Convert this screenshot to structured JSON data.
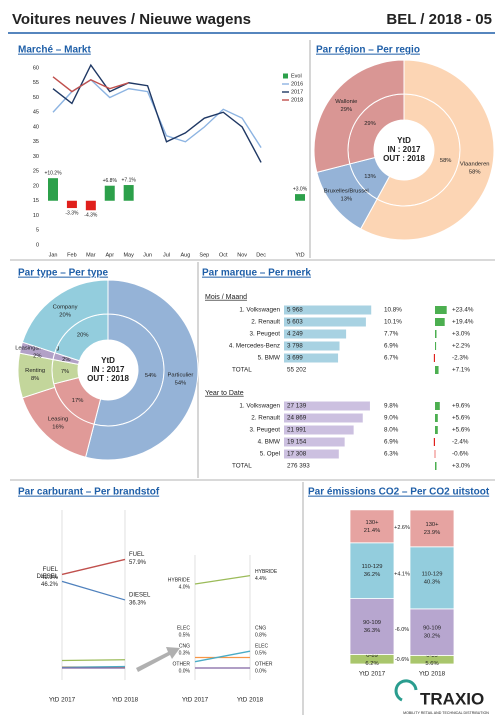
{
  "header": {
    "title": "Voitures neuves / Nieuwe wagens",
    "subtitle": "BEL / 2018 - 05"
  },
  "footer": {
    "logo": "TRAXIO",
    "tagline": "MOBILITY RETAIL AND TECHNICAL DISTRIBUTION"
  },
  "chart_data": [
    {
      "type": "line",
      "title": "Marché – Markt",
      "categories": [
        "Jan",
        "Feb",
        "Mar",
        "Apr",
        "May",
        "Jun",
        "Jul",
        "Aug",
        "Sep",
        "Oct",
        "Nov",
        "Dec",
        "YtD"
      ],
      "ylim": [
        0,
        60
      ],
      "yticks": [
        0,
        5,
        10,
        15,
        20,
        25,
        30,
        35,
        40,
        45,
        50,
        55,
        60
      ],
      "y2lim": [
        -20,
        60
      ],
      "legend": "upper right",
      "series": [
        {
          "name": "Evol",
          "type": "bar",
          "axis": "y2",
          "color": "#2ca04a",
          "negative_color": "#e0201c",
          "values": [
            10.2,
            -3.3,
            -4.3,
            6.8,
            7.1,
            null,
            null,
            null,
            null,
            null,
            null,
            null,
            3.0
          ],
          "value_labels": [
            "+10.2%",
            "-3.3%",
            "-4.3%",
            "+6.8%",
            "+7.1%",
            null,
            null,
            null,
            null,
            null,
            null,
            null,
            "+3.0%"
          ]
        },
        {
          "name": "2016",
          "type": "line",
          "color": "#8db4e2",
          "values": [
            45,
            52,
            56,
            50,
            53,
            52,
            37,
            35,
            40,
            46,
            43,
            33,
            null
          ]
        },
        {
          "name": "2017",
          "type": "line",
          "color": "#1f3864",
          "values": [
            53,
            48,
            61,
            52,
            55,
            54,
            35,
            38,
            43,
            45,
            40,
            28,
            null
          ]
        },
        {
          "name": "2018",
          "type": "line",
          "color": "#c0504d",
          "values": [
            57,
            52,
            56,
            53,
            55,
            null,
            null,
            null,
            null,
            null,
            null,
            null,
            null
          ]
        }
      ]
    },
    {
      "type": "donut",
      "title": "Par région – Per regio",
      "center_label": [
        "YtD",
        "IN : 2017",
        "OUT : 2018"
      ],
      "categories": [
        "Vlaanderen",
        "Bruxelles/Brussel",
        "Wallonie"
      ],
      "colors": [
        "#fcd5b4",
        "#95b3d7",
        "#d99694"
      ],
      "series": [
        {
          "values": [
            58,
            13,
            29
          ],
          "value_labels": [
            "58%",
            "13%",
            "29%"
          ]
        },
        {
          "values": [
            58,
            13,
            29
          ],
          "value_labels": [
            "58%",
            "13%",
            "29%"
          ]
        }
      ]
    },
    {
      "type": "donut",
      "title": "Par type – Per type",
      "center_label": [
        "YtD",
        "IN : 2017",
        "OUT : 2018"
      ],
      "categories": [
        "Particulier",
        "Leasing",
        "Renting",
        "Leasing&Renting",
        "Company"
      ],
      "colors": [
        "#95b3d7",
        "#e09a98",
        "#c3d69b",
        "#b2a1c7",
        "#93cddd"
      ],
      "series": [
        {
          "values": [
            54,
            17,
            7,
            2,
            20
          ],
          "value_labels": [
            "54%",
            "17%",
            "7%",
            "2%",
            "20%"
          ]
        },
        {
          "values": [
            54,
            16,
            8,
            2,
            20
          ],
          "value_labels": [
            "54%",
            "16%",
            "8%",
            "2%",
            "20%"
          ]
        }
      ]
    },
    {
      "type": "table_bar",
      "title": "Par marque – Per merk",
      "total_label": "TOTAL",
      "evol_xlim": [
        -10,
        30
      ],
      "tables": [
        {
          "title": "Mois / Maand",
          "color": "#a8d2e2",
          "xlim": [
            0,
            6500
          ],
          "categories": [
            "1. Volkswagen",
            "2. Renault",
            "3. Peugeot",
            "4. Mercedes-Benz",
            "5. BMW"
          ],
          "values": [
            5968,
            5603,
            4249,
            3798,
            3699
          ],
          "value_labels": [
            "5 968",
            "5 603",
            "4 249",
            "3 798",
            "3 699"
          ],
          "shares": [
            "10.8%",
            "10.1%",
            "7.7%",
            "6.9%",
            "6.7%"
          ],
          "evol": [
            23.4,
            19.4,
            3.0,
            2.2,
            -2.3
          ],
          "evol_labels": [
            "+23.4%",
            "+19.4%",
            "+3.0%",
            "+2.2%",
            "-2.3%"
          ],
          "total": "55 202",
          "total_evol": 7.1,
          "total_evol_label": "+7.1%"
        },
        {
          "title": "Year to Date",
          "color": "#ccc0e0",
          "xlim": [
            0,
            30000
          ],
          "categories": [
            "1. Volkswagen",
            "2. Renault",
            "3. Peugeot",
            "4. BMW",
            "5. Opel"
          ],
          "values": [
            27139,
            24869,
            21991,
            19154,
            17308
          ],
          "value_labels": [
            "27 139",
            "24 869",
            "21 991",
            "19 154",
            "17 308"
          ],
          "shares": [
            "9.8%",
            "9.0%",
            "8.0%",
            "6.9%",
            "6.3%"
          ],
          "evol": [
            9.6,
            5.6,
            5.6,
            -2.4,
            -0.6
          ],
          "evol_labels": [
            "+9.6%",
            "+5.6%",
            "+5.6%",
            "-2.4%",
            "-0.6%"
          ],
          "total": "276 393",
          "total_evol": 3.0,
          "total_evol_label": "+3.0%"
        }
      ]
    },
    {
      "type": "slope",
      "title": "Par carburant – Per brandstof",
      "categories": [
        "YtD 2017",
        "YtD 2018"
      ],
      "ylim": [
        0,
        80
      ],
      "zoom_ylim": [
        0,
        5
      ],
      "series": [
        {
          "name": "FUEL",
          "color": "#c0504d",
          "zoom": false,
          "values": [
            49.9,
            57.9
          ],
          "value_labels": [
            "49.9%",
            "57.9%"
          ]
        },
        {
          "name": "DIESEL",
          "color": "#4f81bd",
          "zoom": false,
          "values": [
            46.2,
            36.3
          ],
          "value_labels": [
            "46.2%",
            "36.3%"
          ]
        },
        {
          "name": "HYBRIDE",
          "color": "#9bbb59",
          "zoom": true,
          "values": [
            4.0,
            4.4
          ],
          "value_labels": [
            "4.0%",
            "4.4%"
          ]
        },
        {
          "name": "ELEC",
          "color": "#f79646",
          "zoom": true,
          "values": [
            0.5,
            0.5
          ],
          "value_labels": [
            "0.5%",
            "0.5%"
          ]
        },
        {
          "name": "CNG",
          "color": "#4bacc6",
          "zoom": true,
          "values": [
            0.3,
            0.8
          ],
          "value_labels": [
            "0.3%",
            "0.8%"
          ]
        },
        {
          "name": "OTHER",
          "color": "#8064a2",
          "zoom": true,
          "values": [
            0.0,
            0.0
          ],
          "value_labels": [
            "0.0%",
            "0.0%"
          ]
        }
      ]
    },
    {
      "type": "stacked_bar",
      "title": "Par émissions CO2 – Per CO2 uitstoot",
      "categories": [
        "YtD 2017",
        "YtD 2018"
      ],
      "ylim": [
        0,
        100
      ],
      "series": [
        {
          "name": "0-89",
          "color": "#a9c66c",
          "values": [
            6.2,
            5.6
          ],
          "value_labels": [
            "6.2%",
            "5.6%"
          ],
          "change": "-0.6%"
        },
        {
          "name": "90-109",
          "color": "#b7a6cf",
          "values": [
            36.3,
            30.2
          ],
          "value_labels": [
            "36.3%",
            "30.2%"
          ],
          "change": "-6.0%"
        },
        {
          "name": "110-129",
          "color": "#93cddd",
          "values": [
            36.2,
            40.3
          ],
          "value_labels": [
            "36.2%",
            "40.3%"
          ],
          "change": "+4.1%"
        },
        {
          "name": "130+",
          "color": "#e6a3a1",
          "values": [
            21.4,
            23.9
          ],
          "value_labels": [
            "21.4%",
            "23.9%"
          ],
          "change": "+2.6%"
        }
      ]
    }
  ]
}
